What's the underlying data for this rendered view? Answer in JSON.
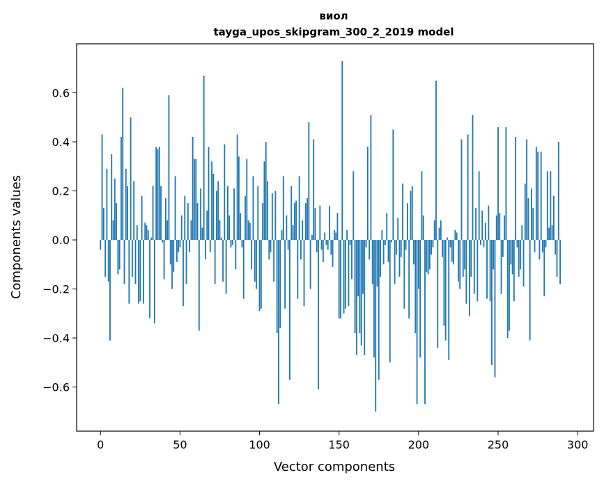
{
  "chart_data": {
    "type": "bar",
    "title": "виол",
    "subtitle": "tayga_upos_skipgram_300_2_2019 model",
    "xlabel": "Vector components",
    "ylabel": "Components values",
    "xlim": [
      -15,
      310
    ],
    "ylim": [
      -0.78,
      0.8
    ],
    "xticks": [
      0,
      50,
      100,
      150,
      200,
      250,
      300
    ],
    "xtick_labels": [
      "0",
      "50",
      "100",
      "150",
      "200",
      "250",
      "300"
    ],
    "yticks": [
      -0.6,
      -0.4,
      -0.2,
      0.0,
      0.2,
      0.4,
      0.6
    ],
    "ytick_labels": [
      "−0.6",
      "−0.4",
      "−0.2",
      "0.0",
      "0.2",
      "0.4",
      "0.6"
    ],
    "bar_color": "#1f77b4",
    "grid": false,
    "values": [
      -0.04,
      0.43,
      0.13,
      -0.15,
      0.29,
      -0.17,
      -0.41,
      0.35,
      0.08,
      0.25,
      0.15,
      -0.14,
      -0.12,
      0.42,
      0.62,
      -0.18,
      0.29,
      0.22,
      -0.26,
      0.5,
      -0.15,
      0.24,
      -0.18,
      0.06,
      -0.26,
      -0.25,
      0.18,
      -0.26,
      0.07,
      0.06,
      0.04,
      -0.32,
      0.01,
      0.22,
      -0.34,
      0.38,
      0.37,
      0.38,
      0.22,
      -0.01,
      -0.16,
      0.17,
      0.08,
      0.59,
      -0.1,
      -0.2,
      -0.13,
      0.26,
      -0.09,
      -0.05,
      -0.03,
      0.1,
      -0.27,
      0.18,
      -0.18,
      0.15,
      -0.05,
      0.08,
      0.42,
      0.33,
      0.33,
      0.15,
      -0.37,
      0.21,
      0.05,
      0.67,
      -0.08,
      0.12,
      0.38,
      -0.05,
      0.32,
      0.27,
      -0.18,
      0.2,
      0.24,
      0.08,
      0.01,
      -0.17,
      0.39,
      -0.22,
      0.22,
      0.1,
      -0.03,
      -0.02,
      0.21,
      -0.12,
      0.43,
      0.34,
      0.11,
      -0.03,
      -0.24,
      0.18,
      0.33,
      0.08,
      0.07,
      -0.12,
      0.26,
      -0.17,
      -0.2,
      0.22,
      -0.29,
      -0.28,
      0.15,
      0.32,
      0.4,
      0.24,
      -0.08,
      -0.05,
      0.19,
      -0.17,
      0.2,
      -0.38,
      -0.67,
      -0.36,
      0.04,
      0.26,
      -0.28,
      0.1,
      -0.04,
      -0.57,
      0.22,
      0.06,
      0.15,
      0.16,
      -0.24,
      0.26,
      -0.08,
      0.08,
      -0.27,
      0.15,
      0.17,
      0.48,
      -0.2,
      0.02,
      0.41,
      0.13,
      -0.05,
      -0.61,
      0.14,
      -0.04,
      -0.09,
      0.03,
      -0.02,
      -0.04,
      0.14,
      -0.06,
      -0.11,
      0.04,
      0.03,
      0.11,
      -0.32,
      -0.32,
      0.73,
      -0.3,
      -0.28,
      0.04,
      -0.27,
      -0.02,
      -0.16,
      0.28,
      -0.38,
      -0.47,
      -0.23,
      -0.38,
      -0.43,
      -0.22,
      -0.47,
      -0.03,
      0.38,
      -0.08,
      0.51,
      -0.18,
      -0.48,
      -0.7,
      -0.19,
      -0.57,
      -0.15,
      0.04,
      -0.1,
      -0.02,
      0.11,
      -0.09,
      -0.5,
      -0.01,
      0.45,
      -0.18,
      -0.06,
      0.09,
      -0.15,
      -0.07,
      0.23,
      -0.28,
      -0.04,
      0.15,
      -0.32,
      0.2,
      0.22,
      -0.1,
      -0.38,
      -0.67,
      -0.2,
      -0.48,
      0.28,
      0.1,
      -0.67,
      -0.13,
      -0.14,
      -0.12,
      -0.06,
      -0.03,
      0.08,
      0.65,
      -0.44,
      0.05,
      0.08,
      -0.07,
      -0.35,
      -0.41,
      0.01,
      -0.49,
      -0.03,
      -0.09,
      -0.1,
      0.04,
      0.03,
      -0.17,
      -0.2,
      0.41,
      -0.15,
      -0.12,
      -0.26,
      0.43,
      -0.31,
      -0.15,
      0.51,
      -0.22,
      0.13,
      -0.25,
      0.28,
      -0.02,
      0.12,
      -0.03,
      0.07,
      -0.24,
      0.14,
      -0.25,
      -0.51,
      -0.12,
      -0.56,
      0.1,
      0.46,
      0.11,
      -0.22,
      -0.07,
      0.1,
      0.46,
      -0.4,
      -0.37,
      -0.1,
      -0.14,
      -0.25,
      0.42,
      -0.03,
      -0.15,
      -0.12,
      0.06,
      -0.19,
      0.23,
      0.41,
      0.17,
      -0.41,
      0.21,
      0.13,
      -0.05,
      0.38,
      0.36,
      -0.08,
      0.36,
      -0.05,
      -0.23,
      -0.03,
      0.28,
      0.05,
      0.28,
      0.06,
      0.18,
      -0.06,
      -0.15,
      0.4,
      -0.18
    ]
  }
}
